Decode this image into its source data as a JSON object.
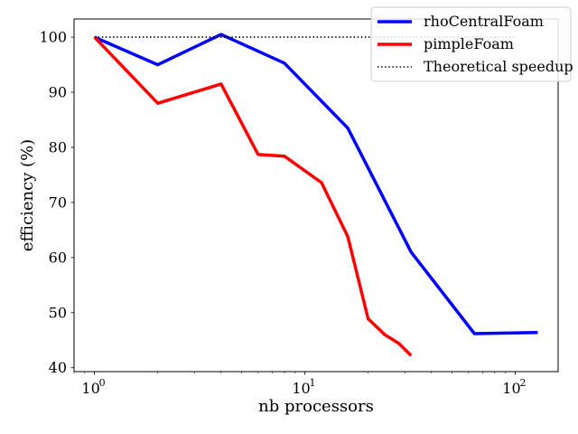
{
  "chart_data": {
    "type": "line",
    "xlabel": "nb processors",
    "ylabel": "efficiency (%)",
    "xscale": "log",
    "xlim": [
      0.8,
      160
    ],
    "ylim": [
      39.3,
      103.3
    ],
    "x_ticks": [
      1,
      10,
      100
    ],
    "x_tick_labels": [
      {
        "base": "10",
        "exp": "0"
      },
      {
        "base": "10",
        "exp": "1"
      },
      {
        "base": "10",
        "exp": "2"
      }
    ],
    "y_ticks": [
      40,
      50,
      60,
      70,
      80,
      90,
      100
    ],
    "y_tick_labels": [
      "40",
      "50",
      "60",
      "70",
      "80",
      "90",
      "100"
    ],
    "grid": false,
    "legend_position": "top-right",
    "series": [
      {
        "name": "rhoCentralFoam",
        "color": "#0000ff",
        "style": "solid",
        "points": [
          [
            1,
            100
          ],
          [
            2,
            95
          ],
          [
            4,
            100.5
          ],
          [
            8,
            95.3
          ],
          [
            16,
            83.5
          ],
          [
            32,
            61
          ],
          [
            64,
            46.2
          ],
          [
            128,
            46.4
          ]
        ]
      },
      {
        "name": "pimpleFoam",
        "color": "#ff0000",
        "style": "solid",
        "points": [
          [
            1,
            100
          ],
          [
            2,
            88
          ],
          [
            4,
            91.5
          ],
          [
            6,
            78.7
          ],
          [
            8,
            78.4
          ],
          [
            12,
            73.6
          ],
          [
            16,
            63.8
          ],
          [
            20,
            48.9
          ],
          [
            24,
            46
          ],
          [
            28,
            44.4
          ],
          [
            32,
            42.2
          ]
        ]
      },
      {
        "name": "Theoretical speedup",
        "color": "#000000",
        "style": "dotted",
        "points": [
          [
            1,
            100
          ],
          [
            100,
            100
          ]
        ]
      }
    ]
  }
}
